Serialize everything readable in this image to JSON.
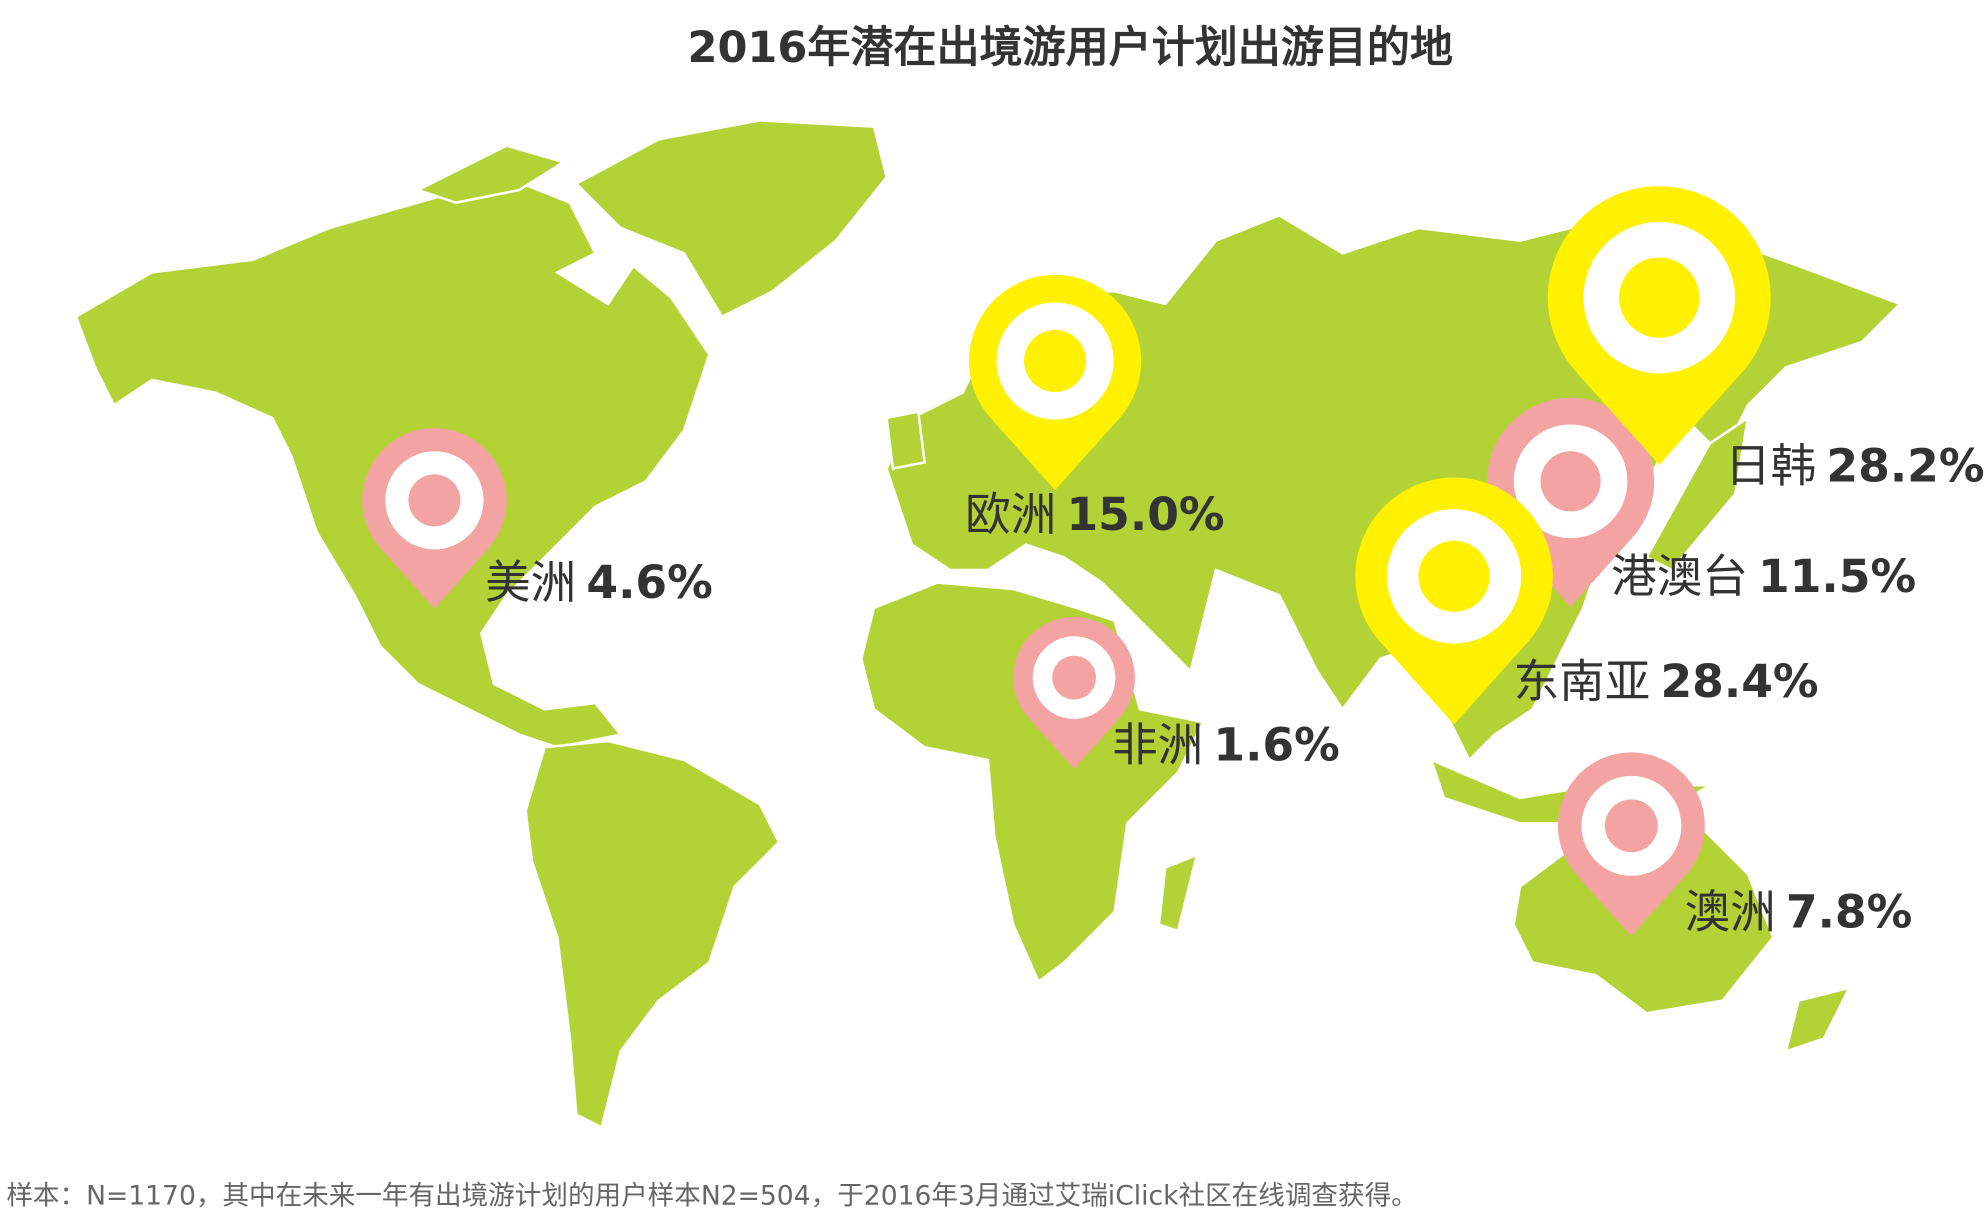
{
  "title": "2016年潜在出境游用户计划出游目的地",
  "regions": [
    {
      "name": "美洲",
      "value": 4.6,
      "value_label": "4.6%",
      "color": "#f4a3a3"
    },
    {
      "name": "欧洲",
      "value": 15.0,
      "value_label": "15.0%",
      "color": "#fff100"
    },
    {
      "name": "日韩",
      "value": 28.2,
      "value_label": "28.2%",
      "color": "#fff100"
    },
    {
      "name": "港澳台",
      "value": 11.5,
      "value_label": "11.5%",
      "color": "#f4a3a3"
    },
    {
      "name": "东南亚",
      "value": 28.4,
      "value_label": "28.4%",
      "color": "#fff100"
    },
    {
      "name": "非洲",
      "value": 1.6,
      "value_label": "1.6%",
      "color": "#f4a3a3"
    },
    {
      "name": "澳洲",
      "value": 7.8,
      "value_label": "7.8%",
      "color": "#f4a3a3"
    }
  ],
  "footnote": "样本：N=1170，其中在未来一年有出境游计划的用户样本N2=504，于2016年3月通过艾瑞iClick社区在线调查获得。"
}
